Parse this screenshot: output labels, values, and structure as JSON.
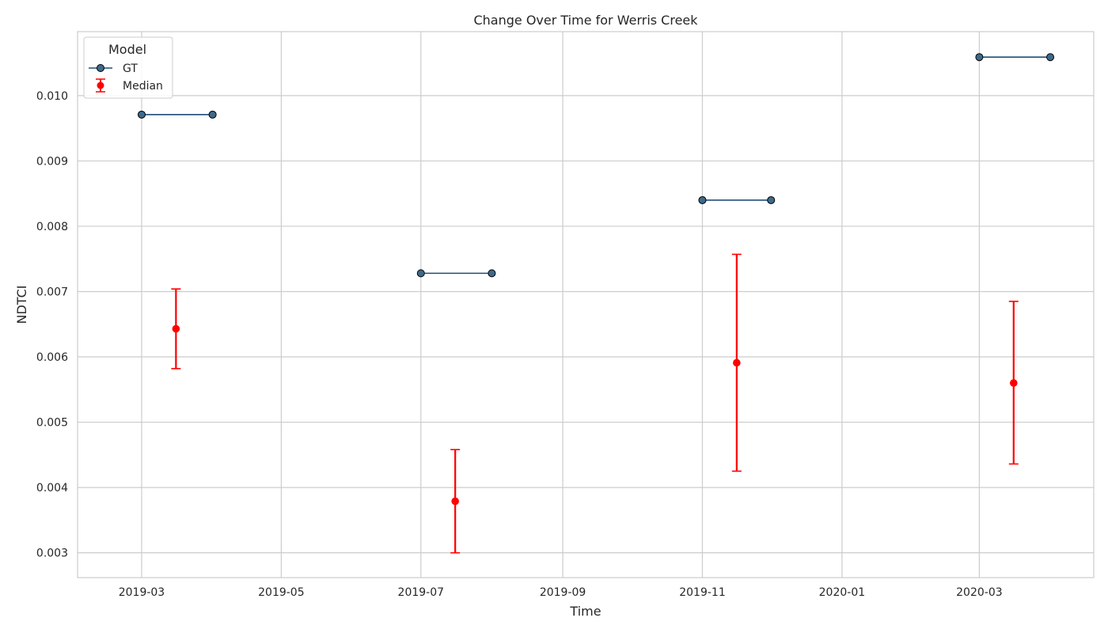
{
  "chart_data": {
    "type": "line",
    "title": "Change Over Time for Werris Creek",
    "xlabel": "Time",
    "ylabel": "NDTCI",
    "x_axis_type": "date",
    "xlim": [
      "2019-02-01",
      "2020-04-20"
    ],
    "ylim": [
      0.00262,
      0.01098
    ],
    "x_ticks": [
      "2019-03",
      "2019-05",
      "2019-07",
      "2019-09",
      "2019-11",
      "2020-01",
      "2020-03"
    ],
    "y_ticks": [
      0.003,
      0.004,
      0.005,
      0.006,
      0.007,
      0.008,
      0.009,
      0.01
    ],
    "y_tick_labels": [
      "0.003",
      "0.004",
      "0.005",
      "0.006",
      "0.007",
      "0.008",
      "0.009",
      "0.010"
    ],
    "grid": true,
    "legend": {
      "title": "Model",
      "placement": "top-left",
      "entries": [
        "GT",
        "Median"
      ]
    },
    "colors": {
      "gt_line": "#1f4e79",
      "gt_marker": "#3d6a8c",
      "median": "#ff0000",
      "grid": "#cccccc",
      "axes_edge": "#cccccc"
    },
    "series": [
      {
        "name": "GT",
        "kind": "segments",
        "segments": [
          {
            "x": [
              "2019-03-01",
              "2019-04-01"
            ],
            "y": 0.00971
          },
          {
            "x": [
              "2019-07-01",
              "2019-08-01"
            ],
            "y": 0.00728
          },
          {
            "x": [
              "2019-11-01",
              "2019-12-01"
            ],
            "y": 0.0084
          },
          {
            "x": [
              "2020-03-01",
              "2020-04-01"
            ],
            "y": 0.01059
          }
        ]
      },
      {
        "name": "Median",
        "kind": "errorbar",
        "points": [
          {
            "x": "2019-03-16",
            "y": 0.00643,
            "low": 0.00582,
            "high": 0.00704
          },
          {
            "x": "2019-07-16",
            "y": 0.00379,
            "low": 0.003,
            "high": 0.00458
          },
          {
            "x": "2019-11-16",
            "y": 0.00591,
            "low": 0.00425,
            "high": 0.00757
          },
          {
            "x": "2020-03-16",
            "y": 0.0056,
            "low": 0.00436,
            "high": 0.00685
          }
        ]
      }
    ]
  }
}
